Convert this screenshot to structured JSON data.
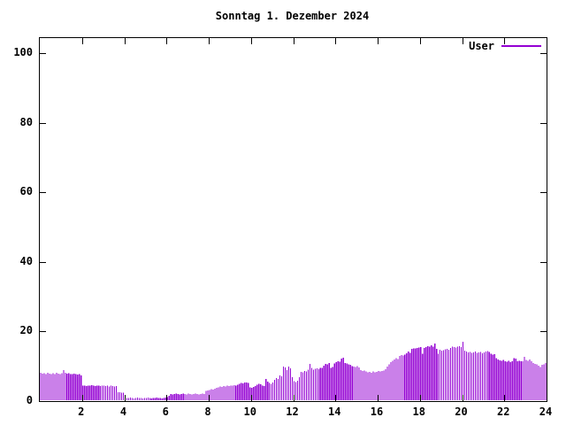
{
  "title": "Sonntag 1. Dezember 2024",
  "legend": {
    "label": "User"
  },
  "colors": {
    "bar": "#9400d3",
    "axis": "#000000",
    "background": "#ffffff",
    "text": "#000000"
  },
  "chart_data": {
    "type": "bar",
    "style": "impulses",
    "title": "Sonntag 1. Dezember 2024",
    "series_name": "User",
    "xlabel": "",
    "ylabel": "",
    "x_unit": "hour_of_day",
    "interval_minutes": 5,
    "xlim": [
      0,
      24
    ],
    "ylim": [
      0,
      104.3
    ],
    "xticks": [
      2,
      4,
      6,
      8,
      10,
      12,
      14,
      16,
      18,
      20,
      22,
      24
    ],
    "yticks": [
      0,
      20,
      40,
      60,
      80,
      100
    ],
    "grid": false,
    "legend_position": "top-right-inside",
    "bar_color": "#9400d3",
    "values": [
      8.1,
      7.9,
      8.0,
      7.8,
      8.1,
      7.9,
      7.7,
      8.0,
      7.8,
      8.1,
      7.9,
      7.7,
      8.0,
      8.9,
      8.1,
      7.9,
      8.0,
      7.8,
      7.7,
      7.9,
      7.8,
      7.6,
      7.8,
      7.4,
      4.5,
      4.4,
      4.3,
      4.5,
      4.4,
      4.6,
      4.4,
      4.3,
      4.5,
      4.4,
      4.3,
      4.4,
      4.5,
      4.3,
      4.4,
      4.2,
      4.4,
      4.3,
      4.2,
      4.3,
      2.6,
      2.5,
      2.4,
      2.4,
      1.0,
      0.9,
      0.9,
      1.0,
      0.9,
      0.8,
      0.9,
      1.0,
      0.9,
      0.9,
      0.8,
      0.9,
      0.9,
      1.0,
      0.9,
      0.8,
      0.9,
      0.9,
      1.0,
      0.9,
      0.9,
      0.8,
      0.9,
      1.0,
      1.1,
      1.5,
      2.0,
      1.9,
      2.0,
      2.1,
      2.0,
      1.9,
      2.0,
      2.1,
      2.0,
      1.9,
      2.1,
      2.0,
      1.9,
      2.0,
      2.1,
      2.0,
      1.9,
      2.0,
      2.1,
      2.0,
      2.9,
      3.1,
      3.2,
      3.4,
      3.3,
      3.6,
      3.8,
      4.0,
      4.2,
      4.1,
      4.3,
      4.2,
      4.4,
      4.3,
      4.5,
      4.4,
      4.6,
      4.5,
      4.7,
      5.0,
      5.2,
      5.1,
      5.3,
      5.4,
      5.2,
      4.0,
      3.8,
      4.1,
      4.3,
      4.7,
      5.0,
      4.8,
      4.5,
      4.3,
      6.4,
      5.6,
      5.2,
      5.0,
      5.3,
      6.1,
      6.6,
      6.4,
      7.4,
      7.1,
      9.9,
      9.7,
      8.9,
      9.9,
      9.4,
      6.9,
      5.7,
      5.5,
      5.8,
      6.9,
      8.4,
      8.3,
      8.6,
      8.5,
      9.0,
      10.7,
      9.5,
      9.0,
      9.3,
      9.4,
      9.2,
      9.5,
      9.6,
      10.2,
      10.7,
      10.5,
      10.9,
      9.6,
      9.8,
      10.8,
      11.2,
      11.5,
      11.3,
      12.2,
      12.5,
      11.0,
      10.8,
      10.6,
      10.4,
      10.0,
      9.9,
      9.8,
      10.0,
      9.7,
      8.9,
      8.7,
      8.8,
      8.5,
      8.3,
      8.4,
      8.2,
      8.5,
      8.3,
      8.4,
      8.6,
      8.5,
      8.7,
      8.8,
      9.2,
      9.9,
      10.5,
      11.2,
      11.6,
      12.0,
      12.3,
      12.1,
      13.0,
      13.2,
      13.1,
      13.3,
      13.7,
      14.3,
      13.9,
      15.0,
      15.2,
      15.1,
      15.3,
      15.4,
      15.5,
      13.6,
      15.3,
      15.5,
      15.8,
      15.6,
      16.0,
      15.7,
      16.6,
      15.0,
      13.6,
      14.8,
      14.5,
      14.6,
      14.9,
      15.0,
      14.8,
      15.3,
      15.7,
      15.5,
      15.4,
      15.6,
      15.8,
      15.5,
      17.1,
      14.5,
      14.2,
      14.0,
      14.1,
      13.9,
      14.0,
      14.2,
      13.9,
      14.0,
      14.1,
      13.8,
      14.0,
      14.2,
      14.4,
      14.1,
      13.6,
      13.4,
      13.5,
      12.4,
      11.9,
      11.7,
      11.6,
      11.8,
      11.5,
      11.3,
      11.6,
      11.2,
      11.4,
      12.4,
      12.2,
      11.5,
      11.6,
      11.4,
      11.5,
      12.7,
      11.8,
      11.6,
      11.9,
      11.5,
      10.9,
      10.7,
      10.6,
      10.2,
      9.8,
      10.4,
      10.6,
      10.9
    ]
  }
}
